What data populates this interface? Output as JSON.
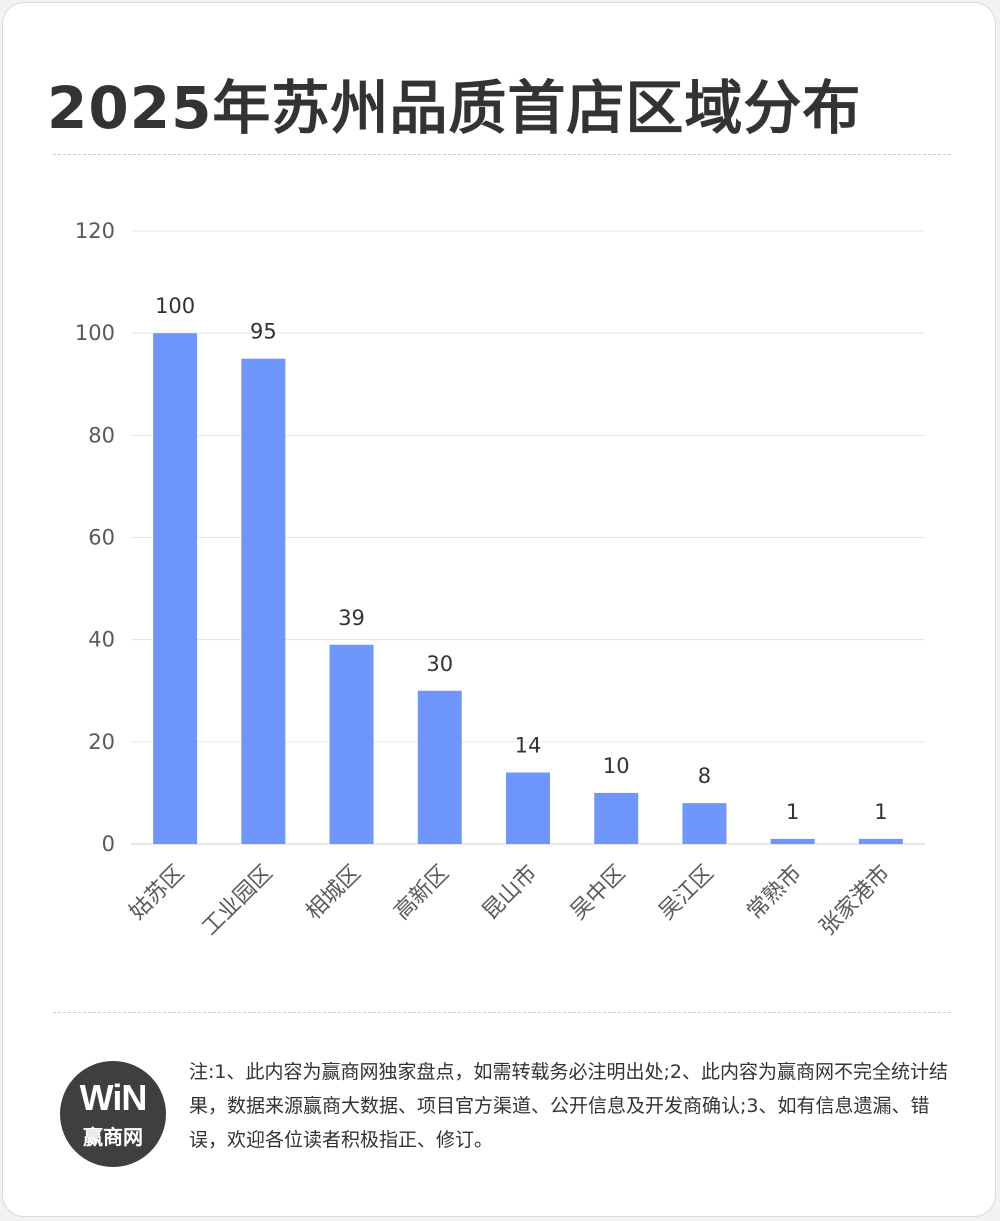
{
  "header": {
    "title": "2025年苏州品质首店区域分布"
  },
  "footer": {
    "note": "注:1、此内容为赢商网独家盘点，如需转载务必注明出处;2、此内容为赢商网不完全统计结果，数据来源赢商大数据、项目官方渠道、公开信息及开发商确认;3、如有信息遗漏、错误，欢迎各位读者积极指正、修订。",
    "logo_mark": "WiN",
    "logo_name": "赢商网"
  },
  "colors": {
    "bar": "#6f96fb",
    "text": "#333333",
    "axis": "#595959",
    "grid": "#e6e6e6"
  },
  "chart_data": {
    "type": "bar",
    "title": "2025年苏州品质首店区域分布",
    "xlabel": "",
    "ylabel": "",
    "categories": [
      "姑苏区",
      "工业园区",
      "相城区",
      "高新区",
      "昆山市",
      "吴中区",
      "吴江区",
      "常熟市",
      "张家港市"
    ],
    "values": [
      100,
      95,
      39,
      30,
      14,
      10,
      8,
      1,
      1
    ],
    "ylim": [
      0,
      120
    ],
    "yticks": [
      0,
      20,
      40,
      60,
      80,
      100,
      120
    ],
    "grid": true,
    "legend": "none",
    "data_labels": true
  }
}
